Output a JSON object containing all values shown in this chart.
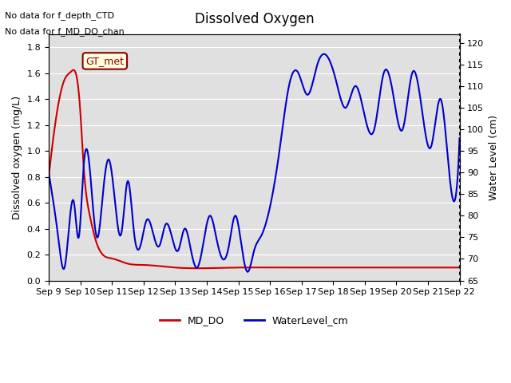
{
  "title": "Dissolved Oxygen",
  "ylabel_left": "Dissolved oxygen (mg/L)",
  "ylabel_right": "Water Level (cm)",
  "text_no_data_1": "No data for f_depth_CTD",
  "text_no_data_2": "No data for f_MD_DO_chan",
  "legend_box_label": "GT_met",
  "legend_entries": [
    "MD_DO",
    "WaterLevel_cm"
  ],
  "legend_colors": [
    "#cc0000",
    "#0000cc"
  ],
  "ylim_left": [
    0.0,
    1.9
  ],
  "ylim_right": [
    65,
    122
  ],
  "yticks_left": [
    0.0,
    0.2,
    0.4,
    0.6,
    0.8,
    1.0,
    1.2,
    1.4,
    1.6,
    1.8
  ],
  "yticks_right": [
    65,
    70,
    75,
    80,
    85,
    90,
    95,
    100,
    105,
    110,
    115,
    120
  ],
  "xtick_labels": [
    "Sep 9",
    "Sep 10",
    "Sep 11",
    "Sep 12",
    "Sep 13",
    "Sep 14",
    "Sep 15",
    "Sep 16",
    "Sep 17",
    "Sep 18",
    "Sep 19",
    "Sep 20",
    "Sep 21",
    "Sep 22"
  ],
  "background_color": "#e8e8e8",
  "plot_bg_color": "#e0e0e0",
  "line_color_red": "#cc0000",
  "line_color_blue": "#0000cc",
  "fig_bg_color": "#ffffff"
}
